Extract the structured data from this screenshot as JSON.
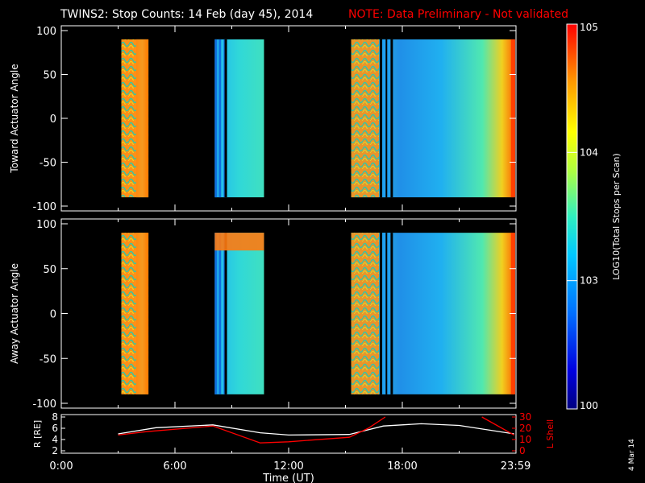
{
  "header": {
    "title": "TWINS2: Stop Counts: 14 Feb (day  45), 2014",
    "note": "NOTE: Data Preliminary - Not validated",
    "note_color": "#ff0000",
    "side_date": "4 Mar 14"
  },
  "chart_data": [
    {
      "type": "heatmap",
      "ylabel": "Toward Actuator Angle",
      "ylim": [
        -100,
        100
      ],
      "yticks": [
        100,
        50,
        0,
        -50,
        -100
      ],
      "xlim": [
        0,
        24
      ],
      "data_blocks": [
        {
          "t0": 3.17,
          "t1": 4.6,
          "level": "high",
          "texture": "wave"
        },
        {
          "t0": 8.1,
          "t1": 10.7,
          "level": "medium",
          "texture": "stripes"
        },
        {
          "t0": 15.3,
          "t1": 23.95,
          "level": "mixed",
          "texture": "stripes"
        }
      ]
    },
    {
      "type": "heatmap",
      "ylabel": "Away Actuator Angle",
      "ylim": [
        -100,
        100
      ],
      "yticks": [
        100,
        50,
        0,
        -50,
        -100
      ],
      "xlim": [
        0,
        24
      ],
      "data_blocks": [
        {
          "t0": 3.17,
          "t1": 4.6,
          "level": "high",
          "texture": "wave"
        },
        {
          "t0": 8.1,
          "t1": 10.7,
          "level": "medium",
          "texture": "stripes"
        },
        {
          "t0": 15.3,
          "t1": 23.95,
          "level": "mixed",
          "texture": "stripes"
        }
      ]
    },
    {
      "type": "line",
      "ylabel_left": "R [RE]",
      "ylabel_right": "L Shell",
      "ylim_left": [
        2,
        8
      ],
      "yticks_left": [
        8,
        6,
        4,
        2
      ],
      "ylim_right": [
        0,
        30
      ],
      "yticks_right": [
        30,
        20,
        10,
        0
      ],
      "xlabel": "Time (UT)",
      "xticks": [
        "0:00",
        "6:00",
        "12:00",
        "18:00",
        "23:59"
      ],
      "xtick_values": [
        0,
        6,
        12,
        18,
        23.98
      ],
      "series": [
        {
          "axis": "left",
          "color": "#ffffff",
          "x": [
            3,
            5,
            8,
            10.5,
            12,
            15.2,
            17,
            19,
            21,
            23.9
          ],
          "y": [
            5.0,
            6.1,
            6.6,
            5.2,
            4.8,
            4.9,
            6.4,
            6.8,
            6.5,
            5.0
          ]
        },
        {
          "axis": "right",
          "color": "#ff0000",
          "x": [
            3,
            4.5,
            8,
            10.5,
            12,
            15.2,
            16.2,
            17.1
          ],
          "y": [
            14,
            17,
            22,
            7,
            8,
            12,
            20,
            30
          ]
        },
        {
          "axis": "right",
          "color": "#ff0000",
          "x": [
            22.2,
            23.9
          ],
          "y": [
            30,
            14
          ]
        }
      ]
    },
    {
      "type": "colorbar",
      "label": "LOG10(Total Stops per Scan)",
      "scale": "log",
      "range": [
        100,
        100000
      ],
      "ticks": [
        {
          "value": 100,
          "label": "100"
        },
        {
          "value": 1000,
          "label": "10^3"
        },
        {
          "value": 10000,
          "label": "10^4"
        },
        {
          "value": 100000,
          "label": "10^5"
        }
      ]
    }
  ]
}
